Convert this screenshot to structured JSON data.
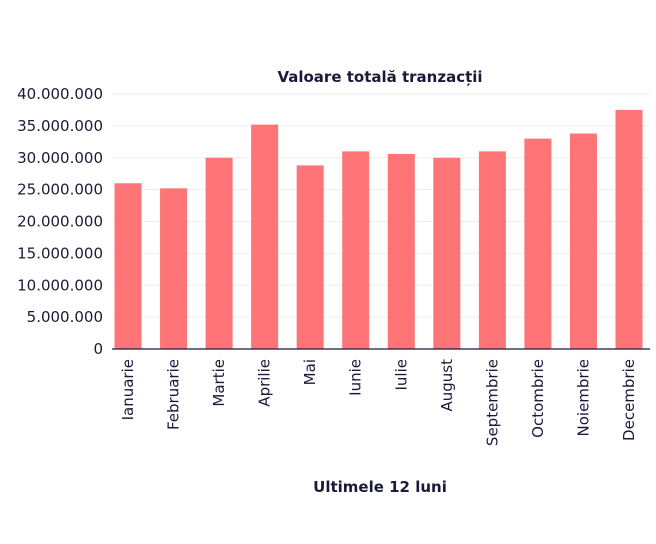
{
  "chart_data": {
    "type": "bar",
    "title": "Valoare totală tranzacții",
    "xlabel": "Ultimele 12 luni",
    "ylabel": "",
    "categories": [
      "Ianuarie",
      "Februarie",
      "Martie",
      "Aprilie",
      "Mai",
      "Iunie",
      "Iulie",
      "August",
      "Septembrie",
      "Octombrie",
      "Noiembrie",
      "Decembrie"
    ],
    "values": [
      26000000,
      25200000,
      30000000,
      35200000,
      28800000,
      31000000,
      30600000,
      30000000,
      31000000,
      33000000,
      33800000,
      37500000
    ],
    "ylim": [
      0,
      40000000
    ],
    "yticks": [
      0,
      5000000,
      10000000,
      15000000,
      20000000,
      25000000,
      30000000,
      35000000,
      40000000
    ],
    "ytick_labels": [
      "0",
      "5.000.000",
      "10.000.000",
      "15.000.000",
      "20.000.000",
      "25.000.000",
      "30.000.000",
      "35.000.000",
      "40.000.000"
    ],
    "grid": true,
    "bar_color": "#ff7476",
    "text_color": "#1b1a3a"
  }
}
